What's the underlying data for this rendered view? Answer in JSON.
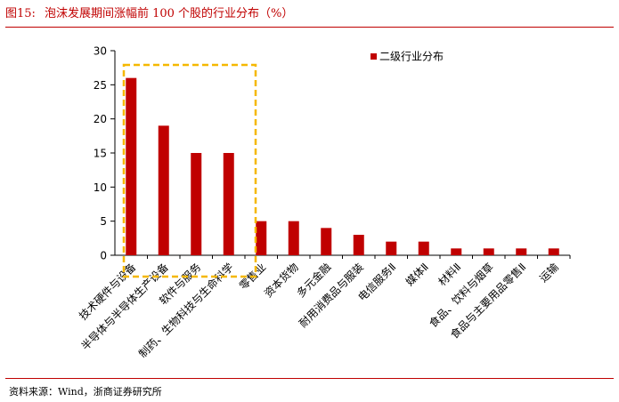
{
  "figure": {
    "number": "图15:",
    "title": "泡沫发展期间涨幅前 100 个股的行业分布（%）",
    "source": "资料来源：Wind，浙商证券研究所"
  },
  "colors": {
    "accent": "#c00000",
    "bar": "#c00000",
    "highlight_box": "#f5b800"
  },
  "chart_data": {
    "type": "bar",
    "title": "",
    "xlabel": "",
    "ylabel": "",
    "ylim": [
      0,
      30
    ],
    "yticks": [
      0,
      5,
      10,
      15,
      20,
      25,
      30
    ],
    "grid": false,
    "legend_position": "top-right",
    "categories": [
      "技术硬件与设备",
      "半导体与半导体生产设备",
      "软件与服务",
      "制药、生物科技与生命科学",
      "零售业",
      "资本货物",
      "多元金融",
      "耐用消费品与服装",
      "电信服务Ⅱ",
      "媒体Ⅱ",
      "材料Ⅱ",
      "食品、饮料与烟草",
      "食品与主要用品零售Ⅱ",
      "运输"
    ],
    "series": [
      {
        "name": "二级行业分布",
        "values": [
          26,
          19,
          15,
          15,
          5,
          5,
          4,
          3,
          2,
          2,
          1,
          1,
          1,
          1
        ]
      }
    ],
    "highlight": {
      "categories": [
        "技术硬件与设备",
        "半导体与半导体生产设备",
        "软件与服务",
        "制药、生物科技与生命科学"
      ],
      "style": "dashed box"
    }
  }
}
